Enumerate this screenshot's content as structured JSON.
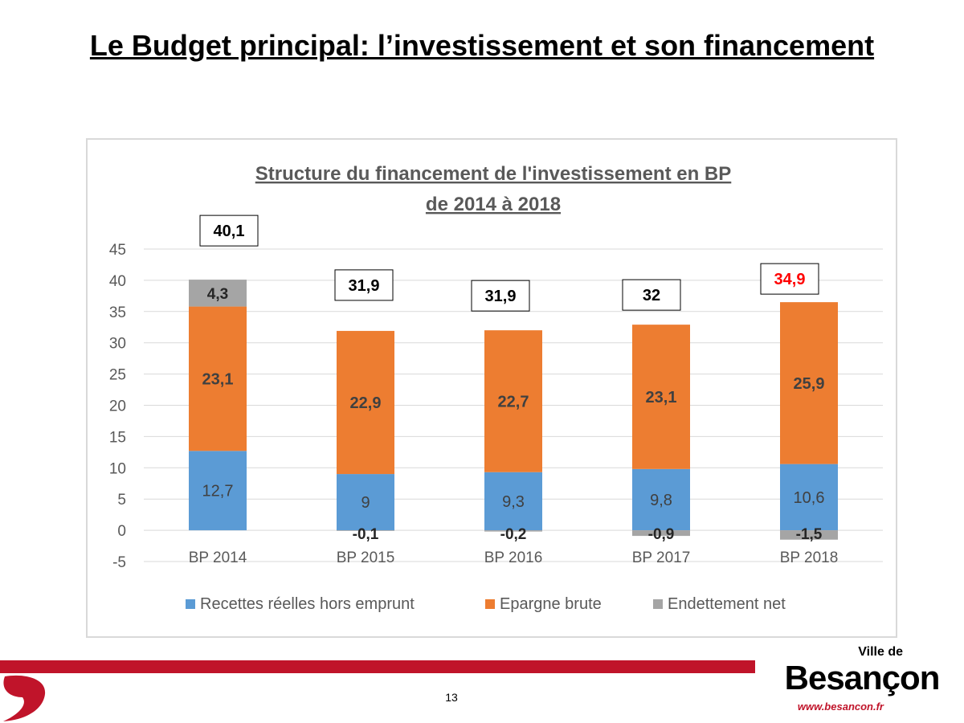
{
  "slide": {
    "title": "Le Budget principal: l’investissement et son financement",
    "page_number": "13"
  },
  "logo": {
    "ville": "Ville de",
    "name": "Besançon",
    "url": "www.besancon.fr"
  },
  "colors": {
    "recettes": "#5b9bd5",
    "epargne": "#ed7d31",
    "endettement": "#a5a5a5",
    "brand_red": "#c0142a",
    "total_highlight": "#ff0000",
    "chart_title": "#595959"
  },
  "chart_data": {
    "type": "bar",
    "stacked": true,
    "title": "Structure du financement de l'investissement en BP de 2014 à 2018",
    "title_lines": [
      "Structure du financement de l'investissement en BP",
      "de 2014 à 2018"
    ],
    "categories": [
      "BP 2014",
      "BP 2015",
      "BP 2016",
      "BP 2017",
      "BP 2018"
    ],
    "series": [
      {
        "name": "Recettes réelles hors emprunt",
        "values": [
          12.7,
          9,
          9.3,
          9.8,
          10.6
        ],
        "labels": [
          "12,7",
          "9",
          "9,3",
          "9,8",
          "10,6"
        ]
      },
      {
        "name": "Epargne brute",
        "values": [
          23.1,
          22.9,
          22.7,
          23.1,
          25.9
        ],
        "labels": [
          "23,1",
          "22,9",
          "22,7",
          "23,1",
          "25,9"
        ]
      },
      {
        "name": "Endettement net",
        "values": [
          4.3,
          -0.1,
          -0.2,
          -0.9,
          -1.5
        ],
        "labels": [
          "4,3",
          "-0,1",
          "-0,2",
          "-0,9",
          "-1,5"
        ]
      }
    ],
    "totals": [
      "40,1",
      "31,9",
      "31,9",
      "32",
      "34,9"
    ],
    "total_highlighted": [
      false,
      false,
      false,
      false,
      true
    ],
    "ylim": [
      -5,
      45
    ],
    "yticks": [
      45,
      40,
      35,
      30,
      25,
      20,
      15,
      10,
      5,
      0,
      -5
    ],
    "grid": true,
    "legend_position": "bottom"
  }
}
